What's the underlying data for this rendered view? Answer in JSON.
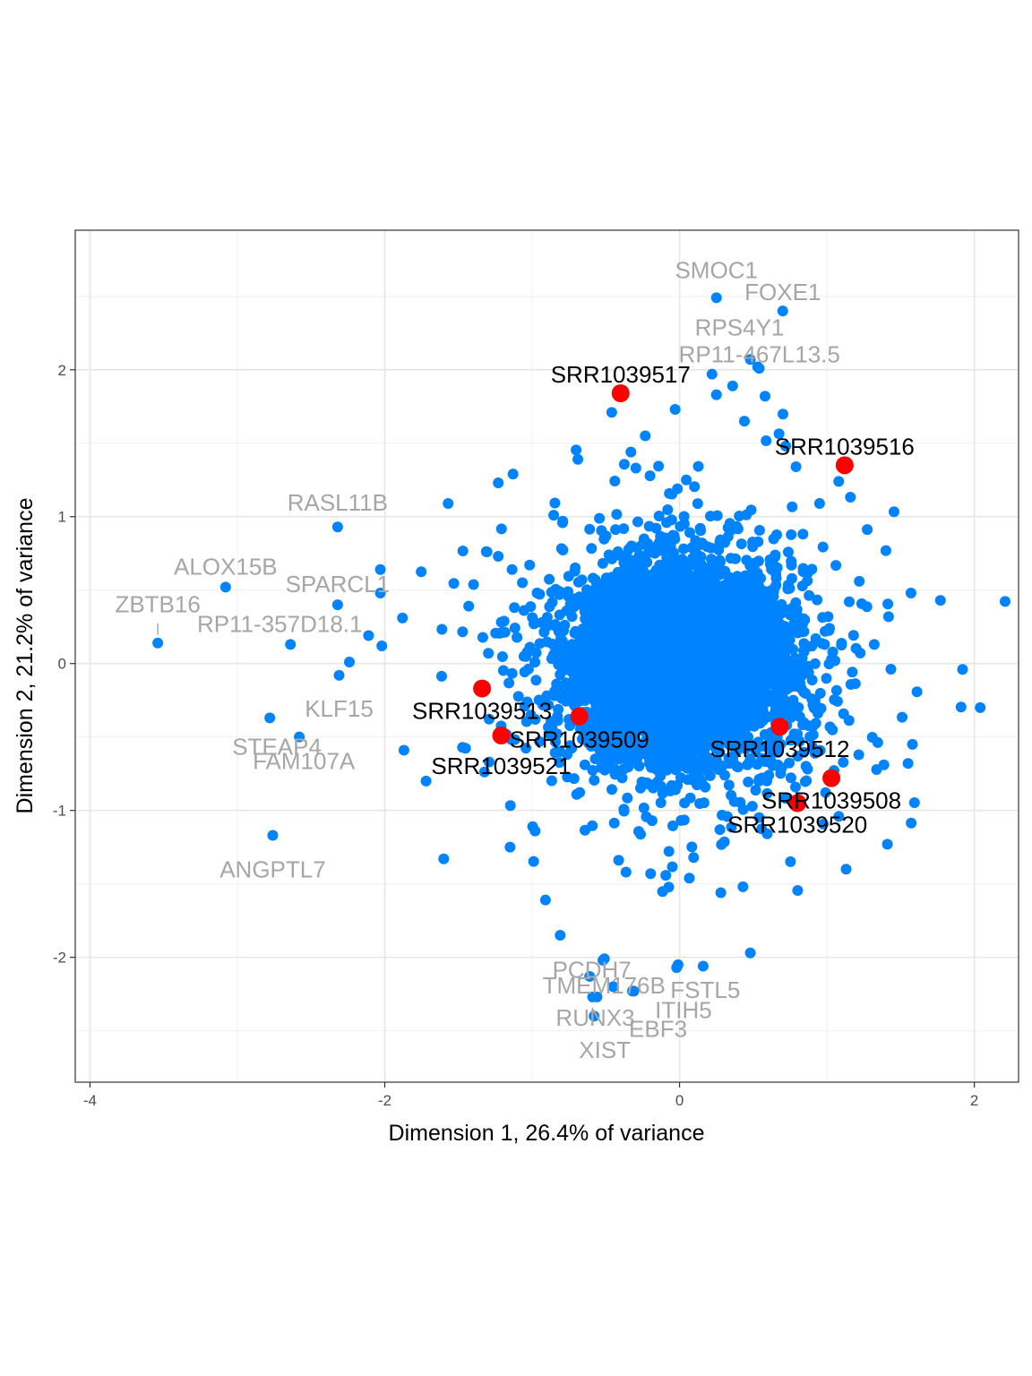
{
  "chart_data": {
    "type": "scatter",
    "xlabel": "Dimension 1, 26.4% of variance",
    "ylabel": "Dimension 2, 21.2% of variance",
    "xlim": [
      -4.1,
      2.3
    ],
    "ylim": [
      -2.85,
      2.95
    ],
    "xticks": [
      -4,
      -2,
      0,
      2
    ],
    "xtick_labels": [
      "-4",
      "-2",
      "0",
      "2"
    ],
    "yticks": [
      -2,
      -1,
      0,
      1,
      2
    ],
    "ytick_labels": [
      "-2",
      "-1",
      "0",
      "1",
      "2"
    ],
    "grid": true,
    "colors": {
      "genes": "#0083ff",
      "samples": "#ff0000",
      "gene_label": "#a6a6a6",
      "sample_label": "#000000"
    },
    "gene_cloud": {
      "description_center": [
        0,
        0
      ],
      "count": 5000
    },
    "labeled_genes": [
      {
        "name": "SMOC1",
        "x": 0.25,
        "y": 2.49
      },
      {
        "name": "FOXE1",
        "x": 0.7,
        "y": 2.4
      },
      {
        "name": "RPS4Y1",
        "x": 0.48,
        "y": 2.07
      },
      {
        "name": "RP11-467L13.5",
        "x": 0.53,
        "y": 2.02
      },
      {
        "name": "RASL11B",
        "x": -2.32,
        "y": 0.93
      },
      {
        "name": "ALOX15B",
        "x": -3.08,
        "y": 0.52
      },
      {
        "name": "SPARCL1",
        "x": -2.32,
        "y": 0.4
      },
      {
        "name": "ZBTB16",
        "x": -3.54,
        "y": 0.14
      },
      {
        "name": "RP11-357D18.1",
        "x": -2.64,
        "y": 0.13
      },
      {
        "name": "KLF15",
        "x": -2.31,
        "y": -0.08
      },
      {
        "name": "STEAP4",
        "x": -2.58,
        "y": -0.5
      },
      {
        "name": "FAM107A",
        "x": -2.78,
        "y": -0.37
      },
      {
        "name": "ANGPTL7",
        "x": -2.76,
        "y": -1.17
      },
      {
        "name": "PCDH7",
        "x": -0.51,
        "y": -2.01
      },
      {
        "name": "TMEM176B",
        "x": -0.61,
        "y": -2.13
      },
      {
        "name": "FSTL5",
        "x": -0.02,
        "y": -2.07
      },
      {
        "name": "RUNX3",
        "x": -0.59,
        "y": -2.27
      },
      {
        "name": "ITIH5",
        "x": -0.32,
        "y": -2.23
      },
      {
        "name": "EBF3",
        "x": -0.45,
        "y": -2.2
      },
      {
        "name": "XIST",
        "x": -0.58,
        "y": -2.4
      }
    ],
    "extra_gene_points": [
      {
        "x": 0.22,
        "y": 1.97
      },
      {
        "x": 0.54,
        "y": 2.01
      },
      {
        "x": 0.36,
        "y": 1.89
      },
      {
        "x": 0.25,
        "y": 1.83
      },
      {
        "x": 0.58,
        "y": 1.82
      },
      {
        "x": -0.46,
        "y": 1.71
      },
      {
        "x": -0.03,
        "y": 1.73
      },
      {
        "x": 0.44,
        "y": 1.65
      },
      {
        "x": 0.72,
        "y": 1.48
      },
      {
        "x": 0.79,
        "y": 1.34
      },
      {
        "x": -0.69,
        "y": 1.39
      },
      {
        "x": -0.33,
        "y": 1.44
      },
      {
        "x": -1.13,
        "y": 1.29
      },
      {
        "x": -1.57,
        "y": 1.09
      },
      {
        "x": -1.23,
        "y": 1.23
      },
      {
        "x": 0.95,
        "y": 1.09
      },
      {
        "x": 1.08,
        "y": 1.24
      },
      {
        "x": 1.77,
        "y": 0.43
      },
      {
        "x": 1.92,
        "y": -0.04
      },
      {
        "x": 2.04,
        "y": -0.3
      },
      {
        "x": 1.57,
        "y": 0.48
      },
      {
        "x": -2.03,
        "y": 0.64
      },
      {
        "x": -2.03,
        "y": 0.48
      },
      {
        "x": -1.88,
        "y": 0.31
      },
      {
        "x": -2.11,
        "y": 0.19
      },
      {
        "x": -2.02,
        "y": 0.12
      },
      {
        "x": -2.24,
        "y": 0.01
      },
      {
        "x": -1.87,
        "y": -0.59
      },
      {
        "x": -1.72,
        "y": -0.8
      },
      {
        "x": -1.6,
        "y": -1.33
      },
      {
        "x": -1.15,
        "y": -1.25
      },
      {
        "x": -0.91,
        "y": -1.61
      },
      {
        "x": -0.81,
        "y": -1.85
      },
      {
        "x": -0.52,
        "y": -2.02
      },
      {
        "x": -0.56,
        "y": -2.27
      },
      {
        "x": -0.31,
        "y": -2.23
      },
      {
        "x": 0.16,
        "y": -2.06
      },
      {
        "x": 0.48,
        "y": -1.97
      },
      {
        "x": -0.01,
        "y": -2.05
      },
      {
        "x": 0.28,
        "y": -1.56
      },
      {
        "x": 0.43,
        "y": -1.52
      },
      {
        "x": 1.13,
        "y": -1.4
      },
      {
        "x": 1.41,
        "y": -1.23
      },
      {
        "x": 1.55,
        "y": -0.68
      },
      {
        "x": 1.58,
        "y": -0.55
      }
    ],
    "samples": [
      {
        "name": "SRR1039517",
        "x": -0.4,
        "y": 1.84
      },
      {
        "name": "SRR1039516",
        "x": 1.12,
        "y": 1.35
      },
      {
        "name": "SRR1039513",
        "x": -1.34,
        "y": -0.17
      },
      {
        "name": "SRR1039509",
        "x": -0.68,
        "y": -0.36
      },
      {
        "name": "SRR1039521",
        "x": -1.21,
        "y": -0.49
      },
      {
        "name": "SRR1039512",
        "x": 0.68,
        "y": -0.43
      },
      {
        "name": "SRR1039508",
        "x": 1.03,
        "y": -0.78
      },
      {
        "name": "SRR1039520",
        "x": 0.8,
        "y": -0.95
      }
    ]
  }
}
